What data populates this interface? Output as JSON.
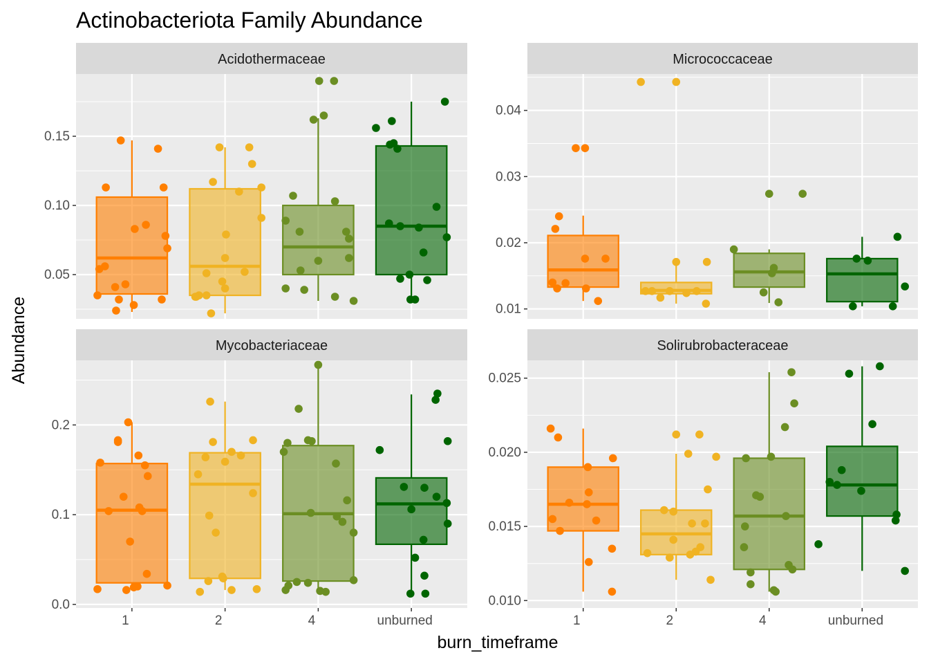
{
  "chart_data": {
    "type": "box",
    "title": "Actinobacteriota Family Abundance",
    "xlabel": "burn_timeframe",
    "ylabel": "Abundance",
    "categories": [
      "1",
      "2",
      "4",
      "unburned"
    ],
    "colors": {
      "1": "#FF7F00",
      "2": "#F0B323",
      "4": "#6B8E23",
      "unburned": "#006400",
      "panel_bg": "#EBEBEB",
      "strip_bg": "#D9D9D9",
      "grid": "#FFFFFF"
    },
    "panels": [
      {
        "strip": "Acidothermaceae",
        "ylim": [
          0.018,
          0.195
        ],
        "yticks": [
          0.05,
          0.1,
          0.15
        ],
        "ytick_labels": [
          "0.05",
          "0.10",
          "0.15"
        ],
        "show_xticks": false,
        "boxes": [
          {
            "category": "1",
            "whisker_low": 0.023,
            "q1": 0.036,
            "median": 0.062,
            "q3": 0.106,
            "whisker_high": 0.147
          },
          {
            "category": "2",
            "whisker_low": 0.022,
            "q1": 0.035,
            "median": 0.056,
            "q3": 0.112,
            "whisker_high": 0.142
          },
          {
            "category": "4",
            "whisker_low": 0.031,
            "q1": 0.05,
            "median": 0.07,
            "q3": 0.1,
            "whisker_high": 0.163
          },
          {
            "category": "unburned",
            "whisker_low": 0.032,
            "q1": 0.05,
            "median": 0.085,
            "q3": 0.143,
            "whisker_high": 0.175
          }
        ],
        "points": [
          {
            "category": "1",
            "values": [
              0.147,
              0.141,
              0.113,
              0.113,
              0.086,
              0.083,
              0.078,
              0.069,
              0.056,
              0.054,
              0.043,
              0.041,
              0.035,
              0.032,
              0.032,
              0.028,
              0.024
            ],
            "jitter": [
              -0.12,
              0.28,
              -0.28,
              0.34,
              0.15,
              0.03,
              0.36,
              0.38,
              -0.29,
              -0.35,
              -0.07,
              -0.18,
              -0.37,
              -0.14,
              0.32,
              0.02,
              -0.17
            ]
          },
          {
            "category": "2",
            "values": [
              0.142,
              0.142,
              0.13,
              0.117,
              0.113,
              0.11,
              0.091,
              0.079,
              0.062,
              0.052,
              0.051,
              0.045,
              0.04,
              0.035,
              0.035,
              0.034,
              0.034,
              0.022
            ],
            "jitter": [
              -0.06,
              0.26,
              0.29,
              -0.13,
              0.39,
              0.15,
              0.39,
              0.01,
              0.0,
              0.21,
              -0.2,
              -0.03,
              0.0,
              -0.2,
              -0.28,
              -0.31,
              -0.32,
              -0.15
            ]
          },
          {
            "category": "4",
            "values": [
              0.19,
              0.19,
              0.165,
              0.162,
              0.107,
              0.103,
              0.089,
              0.081,
              0.081,
              0.076,
              0.062,
              0.06,
              0.053,
              0.04,
              0.039,
              0.034,
              0.031
            ],
            "jitter": [
              0.01,
              0.17,
              0.06,
              -0.05,
              -0.27,
              0.18,
              -0.35,
              0.3,
              -0.2,
              0.33,
              0.33,
              0.0,
              -0.19,
              -0.35,
              -0.15,
              0.18,
              0.38
            ]
          },
          {
            "category": "unburned",
            "values": [
              0.175,
              0.161,
              0.156,
              0.145,
              0.144,
              0.141,
              0.099,
              0.087,
              0.085,
              0.084,
              0.077,
              0.066,
              0.05,
              0.047,
              0.046,
              0.032,
              0.032
            ],
            "jitter": [
              0.36,
              -0.21,
              -0.38,
              -0.19,
              -0.23,
              -0.15,
              0.27,
              -0.24,
              -0.12,
              0.08,
              0.38,
              0.13,
              -0.02,
              -0.12,
              0.17,
              -0.01,
              0.04
            ]
          }
        ]
      },
      {
        "strip": "Micrococcaceae",
        "ylim": [
          0.0085,
          0.0455
        ],
        "yticks": [
          0.01,
          0.02,
          0.03,
          0.04
        ],
        "ytick_labels": [
          "0.01",
          "0.02",
          "0.03",
          "0.04"
        ],
        "show_xticks": false,
        "boxes": [
          {
            "category": "1",
            "whisker_low": 0.0112,
            "q1": 0.0133,
            "median": 0.0159,
            "q3": 0.0211,
            "whisker_high": 0.0241
          },
          {
            "category": "2",
            "whisker_low": 0.0108,
            "q1": 0.0123,
            "median": 0.0128,
            "q3": 0.014,
            "whisker_high": 0.0171
          },
          {
            "category": "4",
            "whisker_low": 0.0109,
            "q1": 0.0133,
            "median": 0.0156,
            "q3": 0.0184,
            "whisker_high": 0.019
          },
          {
            "category": "unburned",
            "whisker_low": 0.0104,
            "q1": 0.0111,
            "median": 0.0153,
            "q3": 0.0176,
            "whisker_high": 0.0209
          }
        ],
        "points": [
          {
            "category": "1",
            "values": [
              0.0343,
              0.0343,
              0.024,
              0.0221,
              0.0176,
              0.0176,
              0.014,
              0.0139,
              0.0131,
              0.0131,
              0.0112
            ],
            "jitter": [
              -0.08,
              0.02,
              -0.26,
              -0.3,
              0.02,
              0.24,
              -0.33,
              -0.19,
              0.03,
              -0.28,
              0.16
            ]
          },
          {
            "category": "2",
            "values": [
              0.0443,
              0.0443,
              0.0171,
              0.0171,
              0.0127,
              0.0127,
              0.0127,
              0.0127,
              0.0124,
              0.0117,
              0.0108
            ],
            "jitter": [
              -0.38,
              0.0,
              0.0,
              0.33,
              -0.33,
              -0.26,
              -0.07,
              0.22,
              0.11,
              -0.17,
              0.32
            ]
          },
          {
            "category": "4",
            "values": [
              0.0274,
              0.0274,
              0.019,
              0.0162,
              0.0154,
              0.0125,
              0.011
            ],
            "jitter": [
              0.0,
              0.36,
              -0.38,
              0.05,
              0.03,
              -0.06,
              0.1
            ]
          },
          {
            "category": "unburned",
            "values": [
              0.0209,
              0.0176,
              0.0173,
              0.0134,
              0.0104,
              0.0104
            ],
            "jitter": [
              0.38,
              -0.06,
              0.06,
              0.46,
              -0.1,
              0.33
            ]
          }
        ]
      },
      {
        "strip": "Mycobacteriaceae",
        "ylim": [
          -0.004,
          0.272
        ],
        "yticks": [
          0.0,
          0.1,
          0.2
        ],
        "ytick_labels": [
          "0.0",
          "0.1",
          "0.2"
        ],
        "show_xticks": true,
        "boxes": [
          {
            "category": "1",
            "whisker_low": 0.016,
            "q1": 0.024,
            "median": 0.105,
            "q3": 0.157,
            "whisker_high": 0.203
          },
          {
            "category": "2",
            "whisker_low": 0.016,
            "q1": 0.029,
            "median": 0.134,
            "q3": 0.169,
            "whisker_high": 0.226
          },
          {
            "category": "4",
            "whisker_low": 0.014,
            "q1": 0.026,
            "median": 0.101,
            "q3": 0.177,
            "whisker_high": 0.267
          },
          {
            "category": "unburned",
            "whisker_low": 0.012,
            "q1": 0.067,
            "median": 0.112,
            "q3": 0.141,
            "whisker_high": 0.234
          }
        ],
        "points": [
          {
            "category": "1",
            "values": [
              0.203,
              0.183,
              0.181,
              0.166,
              0.158,
              0.155,
              0.143,
              0.12,
              0.108,
              0.104,
              0.104,
              0.07,
              0.034,
              0.021,
              0.02,
              0.019,
              0.017,
              0.016
            ],
            "jitter": [
              -0.04,
              -0.15,
              -0.15,
              0.07,
              -0.34,
              0.14,
              0.17,
              -0.09,
              0.08,
              0.11,
              -0.25,
              -0.02,
              0.16,
              0.38,
              0.06,
              0.02,
              -0.37,
              -0.06
            ]
          },
          {
            "category": "2",
            "values": [
              0.226,
              0.183,
              0.181,
              0.17,
              0.166,
              0.164,
              0.159,
              0.145,
              0.124,
              0.099,
              0.08,
              0.031,
              0.029,
              0.026,
              0.017,
              0.016,
              0.014
            ],
            "jitter": [
              -0.16,
              0.3,
              -0.13,
              0.07,
              0.17,
              -0.21,
              0.0,
              -0.29,
              0.3,
              -0.17,
              -0.1,
              -0.03,
              -0.02,
              -0.18,
              0.34,
              0.07,
              -0.27
            ]
          },
          {
            "category": "4",
            "values": [
              0.267,
              0.218,
              0.183,
              0.182,
              0.18,
              0.17,
              0.157,
              0.116,
              0.102,
              0.098,
              0.092,
              0.08,
              0.027,
              0.025,
              0.024,
              0.021,
              0.016,
              0.015,
              0.014
            ],
            "jitter": [
              0.0,
              -0.21,
              -0.11,
              -0.07,
              -0.33,
              -0.37,
              0.19,
              0.31,
              -0.08,
              0.2,
              0.26,
              0.38,
              0.38,
              -0.23,
              -0.11,
              -0.32,
              -0.35,
              0.02,
              0.08
            ]
          },
          {
            "category": "unburned",
            "values": [
              0.235,
              0.228,
              0.182,
              0.172,
              0.131,
              0.13,
              0.12,
              0.113,
              0.106,
              0.09,
              0.072,
              0.052,
              0.032,
              0.012,
              0.012
            ],
            "jitter": [
              0.28,
              0.26,
              0.39,
              -0.34,
              -0.08,
              0.14,
              0.27,
              0.38,
              0.0,
              0.39,
              0.13,
              0.04,
              0.14,
              -0.01,
              0.15
            ]
          }
        ]
      },
      {
        "strip": "Solirubrobacteraceae",
        "ylim": [
          0.0095,
          0.0262
        ],
        "yticks": [
          0.01,
          0.015,
          0.02,
          0.025
        ],
        "ytick_labels": [
          "0.010",
          "0.015",
          "0.020",
          "0.025"
        ],
        "show_xticks": true,
        "boxes": [
          {
            "category": "1",
            "whisker_low": 0.0106,
            "q1": 0.0147,
            "median": 0.0165,
            "q3": 0.019,
            "whisker_high": 0.0216
          },
          {
            "category": "2",
            "whisker_low": 0.0114,
            "q1": 0.0131,
            "median": 0.0145,
            "q3": 0.0161,
            "whisker_high": 0.0199
          },
          {
            "category": "4",
            "whisker_low": 0.0106,
            "q1": 0.0121,
            "median": 0.0157,
            "q3": 0.0196,
            "whisker_high": 0.0254
          },
          {
            "category": "unburned",
            "whisker_low": 0.012,
            "q1": 0.0157,
            "median": 0.0178,
            "q3": 0.0204,
            "whisker_high": 0.0258
          }
        ],
        "points": [
          {
            "category": "1",
            "values": [
              0.0216,
              0.021,
              0.0196,
              0.019,
              0.0173,
              0.0166,
              0.0165,
              0.0155,
              0.0154,
              0.0147,
              0.0135,
              0.0126,
              0.0106
            ],
            "jitter": [
              -0.35,
              -0.27,
              0.32,
              0.05,
              0.06,
              -0.15,
              0.04,
              -0.33,
              0.14,
              -0.25,
              0.31,
              0.06,
              0.31
            ]
          },
          {
            "category": "2",
            "values": [
              0.0212,
              0.0212,
              0.0199,
              0.0197,
              0.0175,
              0.0161,
              0.016,
              0.0152,
              0.0152,
              0.0141,
              0.0136,
              0.0133,
              0.0132,
              0.0131,
              0.0129,
              0.0114
            ],
            "jitter": [
              0.0,
              0.25,
              0.13,
              0.43,
              0.34,
              -0.13,
              -0.03,
              0.17,
              0.31,
              -0.03,
              0.26,
              0.21,
              -0.31,
              0.15,
              -0.07,
              0.37
            ]
          },
          {
            "category": "4",
            "values": [
              0.0254,
              0.0233,
              0.0217,
              0.0197,
              0.0196,
              0.0171,
              0.017,
              0.0157,
              0.015,
              0.0136,
              0.0124,
              0.0121,
              0.0119,
              0.0111,
              0.0107,
              0.0106
            ],
            "jitter": [
              0.24,
              0.27,
              0.17,
              0.02,
              -0.25,
              -0.14,
              -0.1,
              0.18,
              -0.26,
              -0.27,
              0.21,
              0.25,
              -0.2,
              -0.2,
              0.05,
              0.07
            ]
          },
          {
            "category": "unburned",
            "values": [
              0.0258,
              0.0253,
              0.0219,
              0.0188,
              0.018,
              0.0178,
              0.0174,
              0.0158,
              0.0154,
              0.0138,
              0.012
            ],
            "jitter": [
              0.19,
              -0.14,
              0.11,
              -0.22,
              -0.35,
              -0.27,
              -0.01,
              0.37,
              0.36,
              -0.47,
              0.46
            ]
          }
        ]
      }
    ]
  }
}
